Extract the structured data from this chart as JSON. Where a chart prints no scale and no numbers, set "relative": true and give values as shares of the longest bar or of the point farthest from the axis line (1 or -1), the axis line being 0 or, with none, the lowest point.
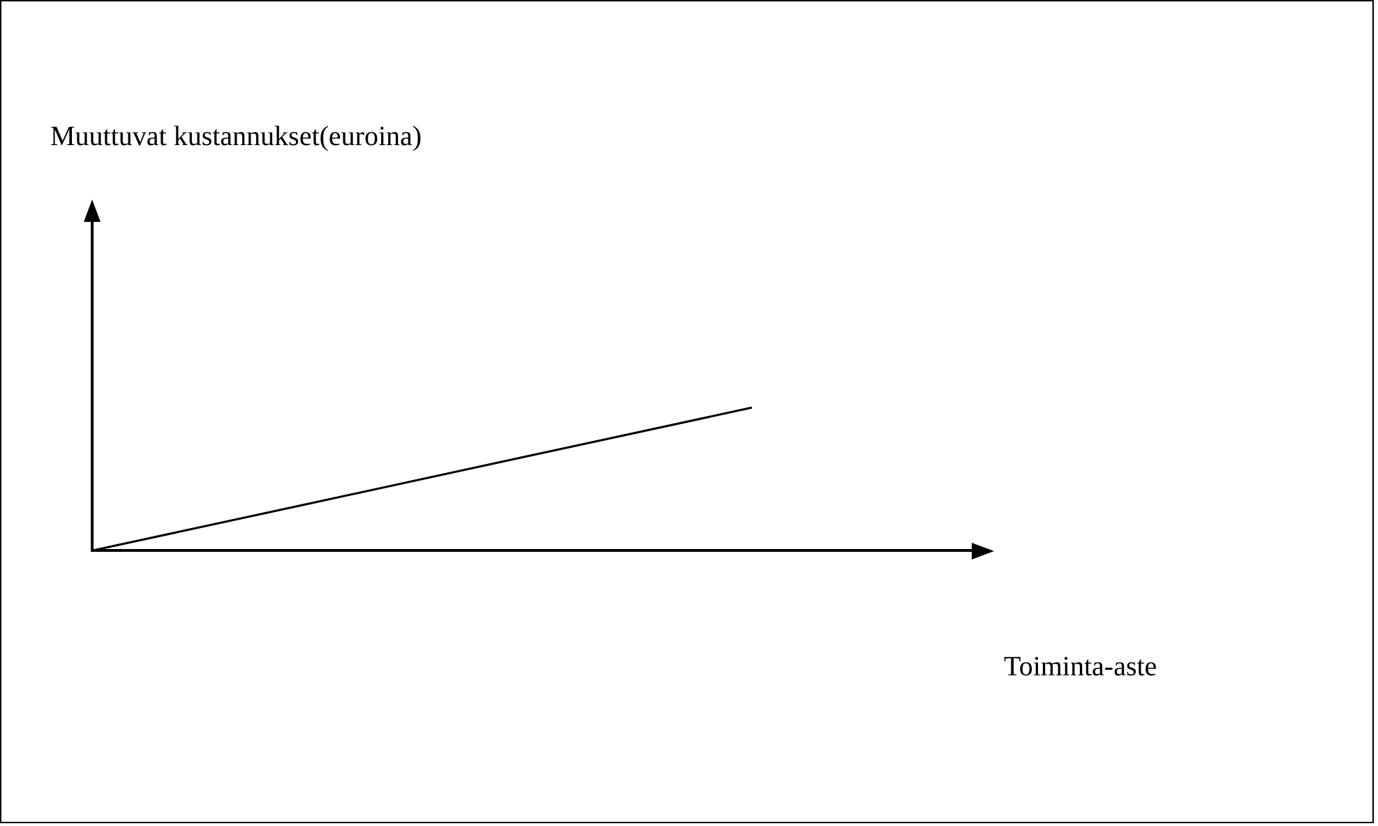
{
  "chart_data": {
    "type": "line",
    "relative": true,
    "annotations": [
      "Muuttuvat kustannukset(euroina)"
    ],
    "xlabel": "Toiminta-aste",
    "categories": [
      null,
      null,
      null,
      null,
      null
    ],
    "series": [
      {
        "color": "#000000",
        "values": [
          0,
          0.333,
          0.667,
          1,
          null
        ]
      }
    ],
    "marker": "none",
    "line_style": "solid",
    "legend": false
  }
}
